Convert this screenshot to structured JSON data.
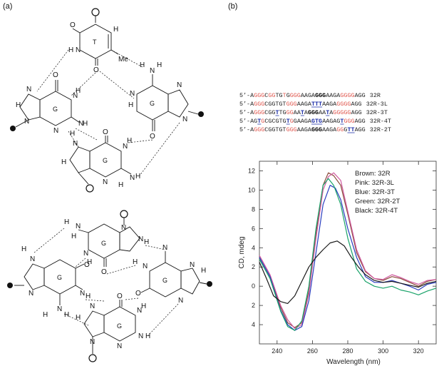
{
  "panels": {
    "a": "(a)",
    "b": "(b)"
  },
  "structures": {
    "methyl": "Me",
    "base_letters": {
      "thymine": "T",
      "guanine": "G"
    }
  },
  "sequences": [
    {
      "tag": "32R",
      "segments": [
        {
          "t": "5’-",
          "c": "k"
        },
        {
          "t": "A",
          "c": "k"
        },
        {
          "t": "GGG",
          "c": "r"
        },
        {
          "t": "C",
          "c": "k"
        },
        {
          "t": "GG",
          "c": "r"
        },
        {
          "t": "TG",
          "c": "k"
        },
        {
          "t": "T",
          "c": "r"
        },
        {
          "t": "G",
          "c": "k"
        },
        {
          "t": "GGG",
          "c": "r"
        },
        {
          "t": "AAGA",
          "c": "k"
        },
        {
          "t": "GGG",
          "c": "kb"
        },
        {
          "t": "AAGA",
          "c": "k"
        },
        {
          "t": "GGGG",
          "c": "r"
        },
        {
          "t": "AGG",
          "c": "k"
        }
      ]
    },
    {
      "tag": "32R-3L",
      "segments": [
        {
          "t": "5’-",
          "c": "k"
        },
        {
          "t": "A",
          "c": "k"
        },
        {
          "t": "GGG",
          "c": "r"
        },
        {
          "t": "CGGTGT",
          "c": "k"
        },
        {
          "t": "GGG",
          "c": "r"
        },
        {
          "t": "AAGA",
          "c": "k"
        },
        {
          "t": "TTT",
          "c": "u"
        },
        {
          "t": "AAGA",
          "c": "k"
        },
        {
          "t": "GGGG",
          "c": "r"
        },
        {
          "t": "AGG",
          "c": "k"
        }
      ]
    },
    {
      "tag": "32R-3T",
      "segments": [
        {
          "t": "5’-",
          "c": "k"
        },
        {
          "t": "A",
          "c": "k"
        },
        {
          "t": "GGG",
          "c": "r"
        },
        {
          "t": "CGG",
          "c": "k"
        },
        {
          "t": "T",
          "c": "u"
        },
        {
          "t": "TG",
          "c": "k"
        },
        {
          "t": "GG",
          "c": "r"
        },
        {
          "t": "AA",
          "c": "k"
        },
        {
          "t": "T",
          "c": "u"
        },
        {
          "t": "A",
          "c": "k"
        },
        {
          "t": "GGG",
          "c": "kb"
        },
        {
          "t": "AA",
          "c": "k"
        },
        {
          "t": "T",
          "c": "u"
        },
        {
          "t": "A",
          "c": "k"
        },
        {
          "t": "GGGGG",
          "c": "r"
        },
        {
          "t": "AGG",
          "c": "k"
        }
      ]
    },
    {
      "tag": "32R-4T",
      "segments": [
        {
          "t": "5’-",
          "c": "k"
        },
        {
          "t": "AG",
          "c": "k"
        },
        {
          "t": "T",
          "c": "u"
        },
        {
          "t": "G",
          "c": "r"
        },
        {
          "t": "CGCGTG",
          "c": "k"
        },
        {
          "t": "T",
          "c": "u"
        },
        {
          "t": "G",
          "c": "r"
        },
        {
          "t": "GAAGA",
          "c": "k"
        },
        {
          "t": "GTG",
          "c": "u"
        },
        {
          "t": "AAGAG",
          "c": "k"
        },
        {
          "t": "T",
          "c": "u"
        },
        {
          "t": "GGG",
          "c": "r"
        },
        {
          "t": "AGG",
          "c": "k"
        }
      ]
    },
    {
      "tag": "32R-2T",
      "segments": [
        {
          "t": "5’-",
          "c": "k"
        },
        {
          "t": "A",
          "c": "k"
        },
        {
          "t": "GGG",
          "c": "r"
        },
        {
          "t": "CGGTGT",
          "c": "k"
        },
        {
          "t": "GGG",
          "c": "r"
        },
        {
          "t": "AAGA",
          "c": "k"
        },
        {
          "t": "GGG",
          "c": "kb"
        },
        {
          "t": "AAGA",
          "c": "k"
        },
        {
          "t": "GG",
          "c": "r"
        },
        {
          "t": "G",
          "c": "k"
        },
        {
          "t": "TT",
          "c": "u"
        },
        {
          "t": "AGG",
          "c": "k"
        }
      ]
    }
  ],
  "colors": {
    "k": "#222222",
    "r": "#e0584f",
    "u": "#2233aa",
    "kb": "#000000"
  },
  "chart_data": {
    "type": "line",
    "xlabel": "Wavelength (nm)",
    "ylabel": "CD, mdeg",
    "xlim": [
      230,
      330
    ],
    "ylim": [
      -6,
      13
    ],
    "xticks": [
      240,
      260,
      280,
      300,
      320
    ],
    "yticks": [
      12,
      10,
      8,
      6,
      4,
      2,
      0,
      -2,
      -4
    ],
    "ytick_labels": [
      "12",
      "10",
      "8",
      "6",
      "4",
      "2",
      "0",
      "2",
      "4"
    ],
    "legend": [
      "Brown: 32R",
      "Pink:   32R-3L",
      "Blue:   32R-3T",
      "Green: 32R-2T",
      "Black: 32R-4T"
    ],
    "legend_position": "top-right",
    "series": [
      {
        "name": "32R",
        "color": "#8b4a3a",
        "x": [
          230,
          236,
          242,
          246,
          250,
          254,
          258,
          262,
          266,
          269,
          272,
          276,
          280,
          285,
          290,
          295,
          300,
          305,
          310,
          315,
          320,
          325,
          330
        ],
        "y": [
          3.0,
          1.0,
          -2.2,
          -3.8,
          -4.3,
          -3.8,
          -0.5,
          5.5,
          10.5,
          11.8,
          11.5,
          10.5,
          7.5,
          3.5,
          1.5,
          0.8,
          0.6,
          1.0,
          0.8,
          0.4,
          0.0,
          0.5,
          0.7
        ]
      },
      {
        "name": "32R-3L",
        "color": "#d05aa0",
        "x": [
          230,
          236,
          242,
          246,
          250,
          254,
          258,
          262,
          266,
          269,
          272,
          276,
          280,
          285,
          290,
          295,
          300,
          305,
          310,
          315,
          320,
          325,
          330
        ],
        "y": [
          3.2,
          1.2,
          -2.0,
          -3.5,
          -4.4,
          -4.0,
          -0.8,
          5.0,
          10.0,
          11.4,
          11.8,
          11.0,
          7.8,
          3.8,
          1.6,
          0.8,
          0.7,
          1.2,
          0.9,
          0.5,
          0.2,
          0.6,
          0.7
        ]
      },
      {
        "name": "32R-3T",
        "color": "#2a3dbf",
        "x": [
          230,
          236,
          242,
          246,
          250,
          254,
          258,
          262,
          266,
          270,
          273,
          276,
          280,
          285,
          290,
          295,
          300,
          305,
          310,
          315,
          320,
          325,
          330
        ],
        "y": [
          3.0,
          1.0,
          -2.5,
          -4.0,
          -4.6,
          -4.2,
          -1.5,
          3.5,
          8.5,
          10.5,
          10.2,
          9.0,
          6.0,
          3.0,
          1.0,
          0.4,
          0.4,
          0.6,
          0.3,
          0.0,
          -0.4,
          0.2,
          0.4
        ]
      },
      {
        "name": "32R-2T",
        "color": "#1aa36a",
        "x": [
          230,
          236,
          242,
          246,
          250,
          254,
          258,
          262,
          266,
          269,
          272,
          276,
          280,
          285,
          290,
          295,
          300,
          305,
          310,
          315,
          320,
          325,
          330
        ],
        "y": [
          2.8,
          0.8,
          -2.6,
          -4.2,
          -4.6,
          -3.6,
          0.0,
          6.0,
          10.5,
          11.2,
          10.5,
          8.5,
          5.0,
          1.8,
          0.5,
          0.0,
          -0.2,
          0.0,
          -0.4,
          -0.6,
          -0.9,
          -0.5,
          -0.2
        ]
      },
      {
        "name": "32R-4T",
        "color": "#1a1a1a",
        "x": [
          230,
          234,
          238,
          242,
          246,
          250,
          254,
          258,
          262,
          266,
          270,
          274,
          278,
          282,
          286,
          290,
          295,
          300,
          305,
          310,
          315,
          320,
          325,
          330
        ],
        "y": [
          2.5,
          0.8,
          -1.0,
          -1.6,
          -1.8,
          -1.0,
          0.5,
          2.0,
          3.0,
          3.8,
          4.5,
          4.7,
          4.2,
          3.0,
          2.0,
          1.2,
          0.6,
          0.4,
          0.5,
          0.3,
          0.1,
          -0.1,
          0.3,
          0.5
        ]
      }
    ]
  }
}
